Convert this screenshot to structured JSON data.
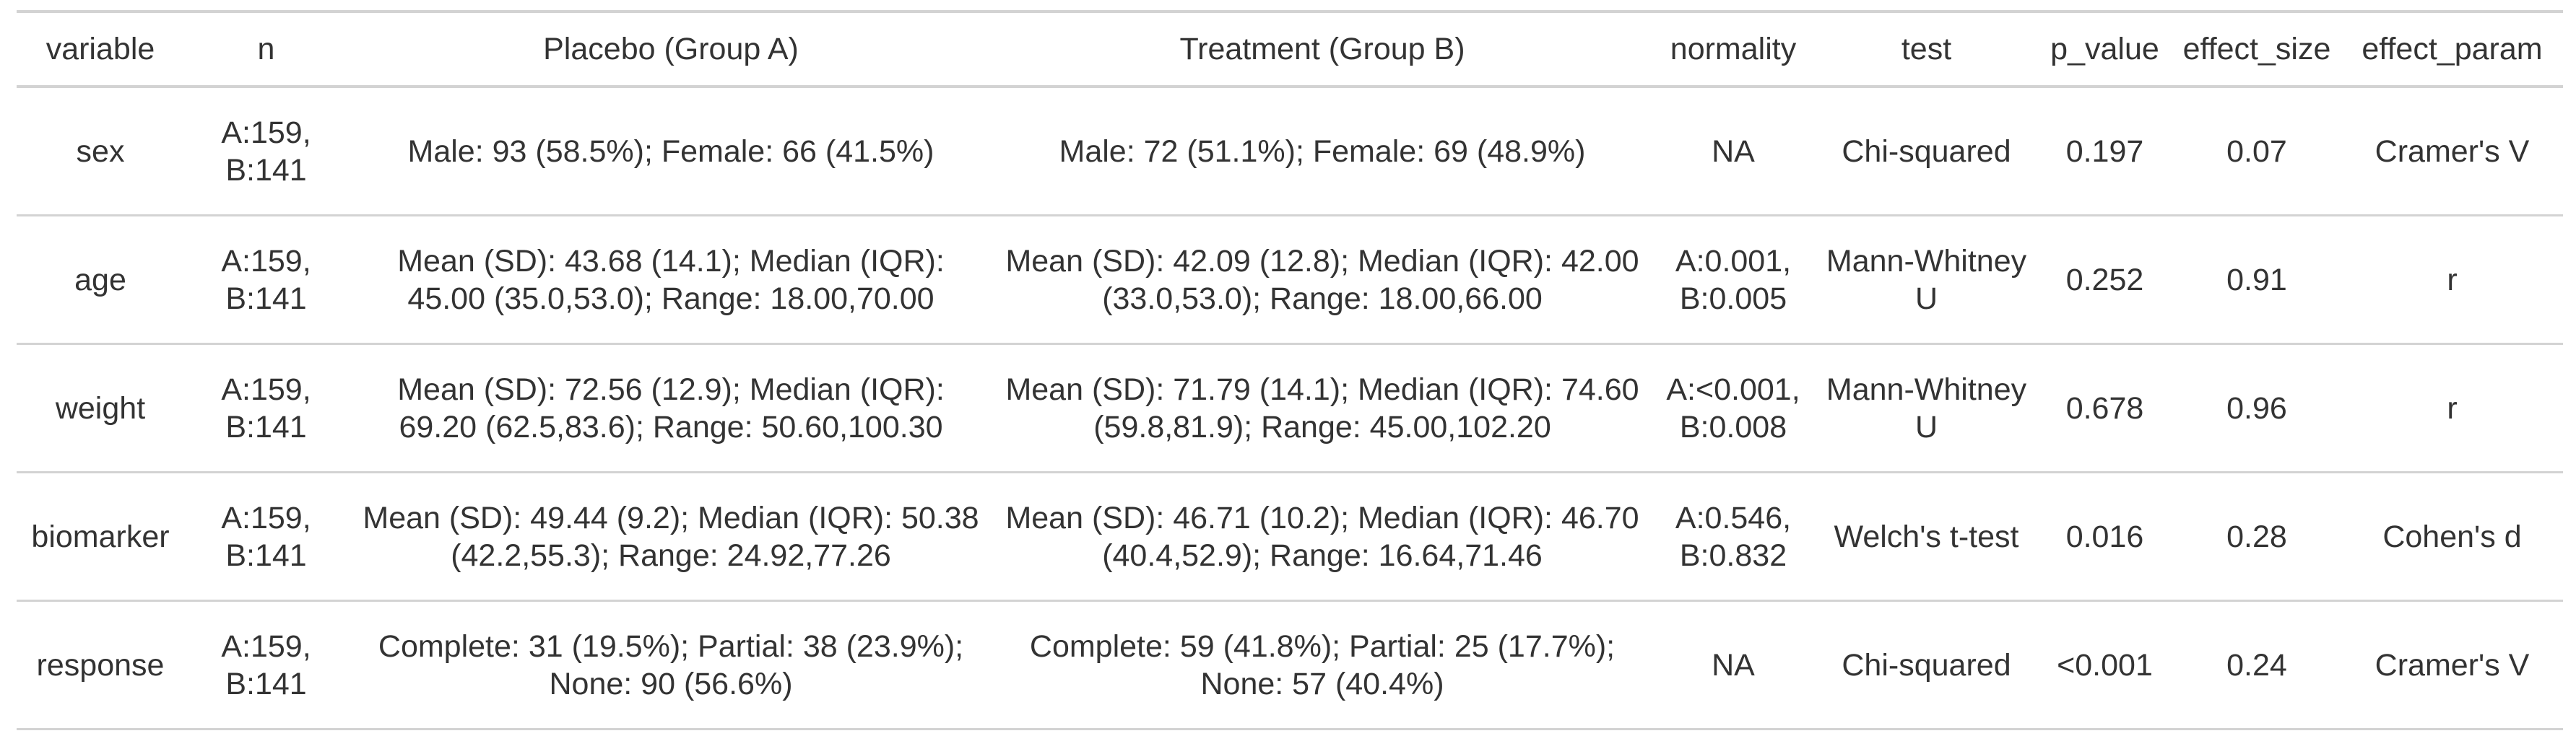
{
  "table": {
    "header": [
      "variable",
      "n",
      "Placebo (Group A)",
      "Treatment (Group B)",
      "normality",
      "test",
      "p_value",
      "effect_size",
      "effect_param"
    ],
    "rows": [
      [
        "sex",
        "A:159, B:141",
        "Male: 93 (58.5%); Female: 66 (41.5%)",
        "Male: 72 (51.1%); Female: 69 (48.9%)",
        "NA",
        "Chi-squared",
        "0.197",
        "0.07",
        "Cramer's V"
      ],
      [
        "age",
        "A:159, B:141",
        "Mean (SD): 43.68 (14.1); Median (IQR): 45.00 (35.0,53.0); Range: 18.00,70.00",
        "Mean (SD): 42.09 (12.8); Median (IQR): 42.00 (33.0,53.0); Range: 18.00,66.00",
        "A:0.001, B:0.005",
        "Mann-Whitney U",
        "0.252",
        "0.91",
        "r"
      ],
      [
        "weight",
        "A:159, B:141",
        "Mean (SD): 72.56 (12.9); Median (IQR): 69.20 (62.5,83.6); Range: 50.60,100.30",
        "Mean (SD): 71.79 (14.1); Median (IQR): 74.60 (59.8,81.9); Range: 45.00,102.20",
        "A:<0.001, B:0.008",
        "Mann-Whitney U",
        "0.678",
        "0.96",
        "r"
      ],
      [
        "biomarker",
        "A:159, B:141",
        "Mean (SD): 49.44 (9.2); Median (IQR): 50.38 (42.2,55.3); Range: 24.92,77.26",
        "Mean (SD): 46.71 (10.2); Median (IQR): 46.70 (40.4,52.9); Range: 16.64,71.46",
        "A:0.546, B:0.832",
        "Welch's t-test",
        "0.016",
        "0.28",
        "Cohen's d"
      ],
      [
        "response",
        "A:159, B:141",
        "Complete: 31 (19.5%); Partial: 38 (23.9%); None: 90 (56.6%)",
        "Complete: 59 (41.8%); Partial: 25 (17.7%); None: 57 (40.4%)",
        "NA",
        "Chi-squared",
        "<0.001",
        "0.24",
        "Cramer's V"
      ]
    ]
  }
}
